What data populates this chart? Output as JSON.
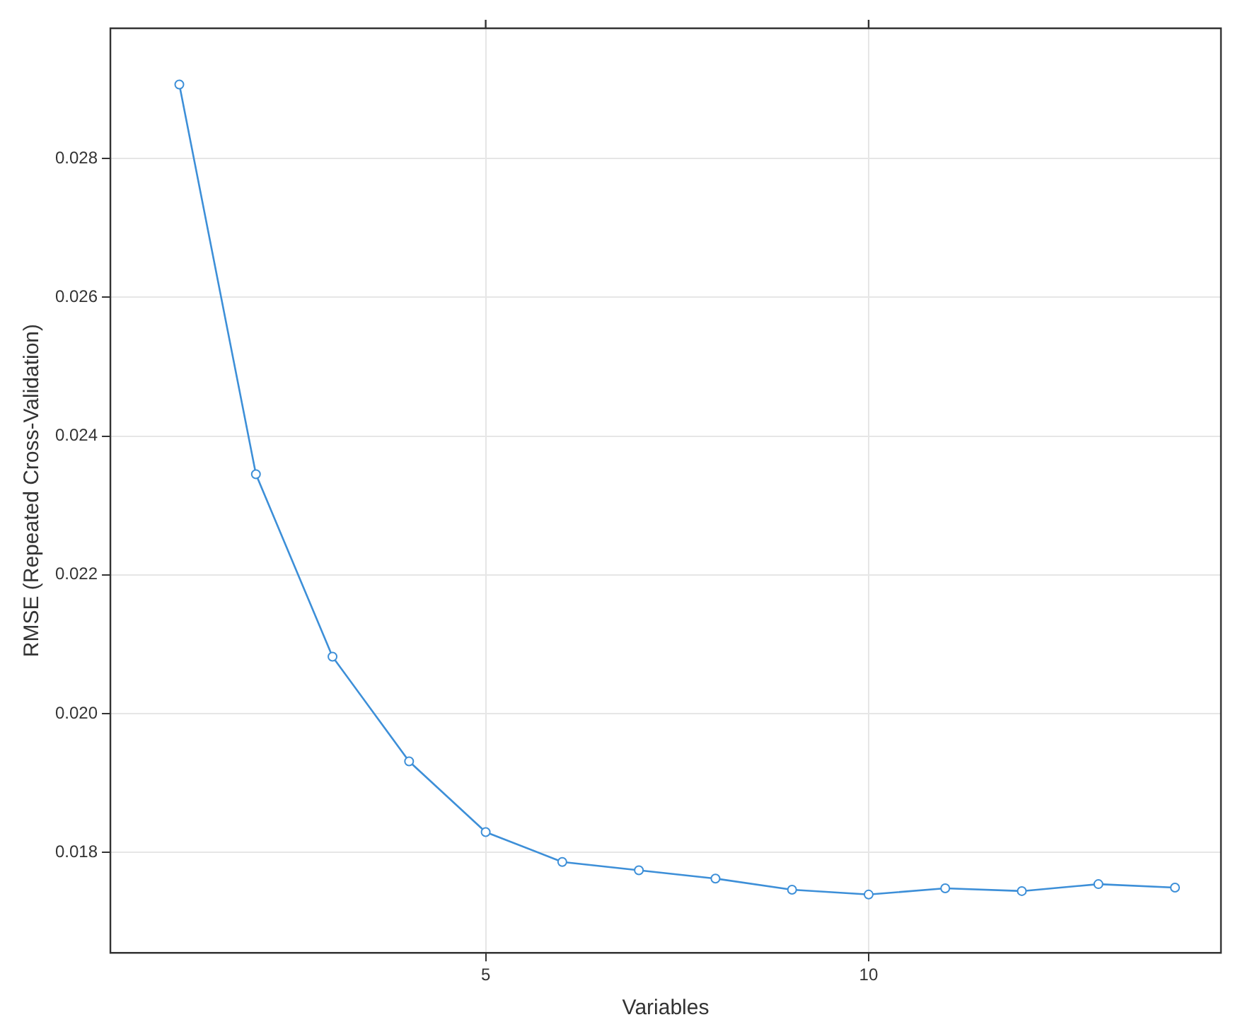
{
  "chart_data": {
    "type": "line",
    "xlabel": "Variables",
    "ylabel": "RMSE (Repeated Cross-Validation)",
    "x": [
      1,
      2,
      3,
      4,
      5,
      6,
      7,
      8,
      9,
      10,
      11,
      12,
      13,
      14
    ],
    "series": [
      {
        "color": "#3d8fd8",
        "values": [
          0.02907,
          0.02345,
          0.02082,
          0.01931,
          0.01829,
          0.01786,
          0.01774,
          0.01762,
          0.01746,
          0.01739,
          0.01748,
          0.01744,
          0.01754,
          0.01749
        ]
      }
    ],
    "xlim": [
      0.1,
      14.6
    ],
    "xticks": [
      5,
      10
    ],
    "ylim": [
      0.01655,
      0.02988
    ],
    "yticks": [
      0.018,
      {
        "value": 0.02,
        "label": "0.020"
      },
      0.022,
      0.024,
      0.026,
      0.028
    ],
    "grid": true,
    "marker": "circle",
    "legend": false
  }
}
